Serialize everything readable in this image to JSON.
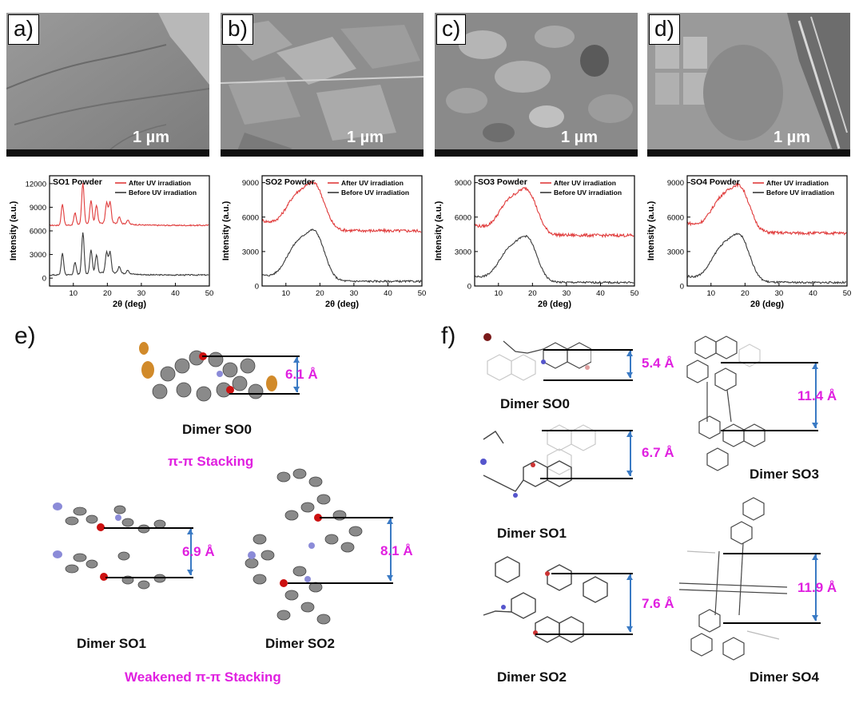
{
  "sem_panels": [
    {
      "label": "a)",
      "scale": "1 µm"
    },
    {
      "label": "b)",
      "scale": "1 µm"
    },
    {
      "label": "c)",
      "scale": "1 µm"
    },
    {
      "label": "d)",
      "scale": "1 µm"
    }
  ],
  "chart_data": [
    {
      "type": "line",
      "title": "SO1 Powder",
      "xlabel": "2θ (deg)",
      "ylabel": "Intensity (a.u.)",
      "xlim": [
        3,
        50
      ],
      "ylim": [
        -1000,
        13000
      ],
      "yticks": [
        "0",
        "3000",
        "6000",
        "9000",
        "12000"
      ],
      "ytick_values": [
        0,
        3000,
        6000,
        9000,
        12000
      ],
      "xticks": [
        "10",
        "20",
        "30",
        "40",
        "50"
      ],
      "xtick_values": [
        10,
        20,
        30,
        40,
        50
      ],
      "kind": "crystalline",
      "upper_base": 6700,
      "lower_base": 400,
      "peaks": [
        [
          6.8,
          2700
        ],
        [
          10.5,
          1500
        ],
        [
          12.8,
          5300
        ],
        [
          15.2,
          3000
        ],
        [
          16.8,
          2300
        ],
        [
          19.8,
          2600
        ],
        [
          20.8,
          2700
        ],
        [
          23.5,
          900
        ],
        [
          26.0,
          500
        ]
      ],
      "series": [
        {
          "name": "After UV irradiation",
          "color": "#e03b3b"
        },
        {
          "name": "Before UV irradiation",
          "color": "#3a3a3a"
        }
      ]
    },
    {
      "type": "line",
      "title": "SO2 Powder",
      "xlabel": "2θ (deg)",
      "ylabel": "Intensity (a.u.)",
      "xlim": [
        3,
        50
      ],
      "ylim": [
        0,
        9600
      ],
      "yticks": [
        "0",
        "3000",
        "6000",
        "9000"
      ],
      "ytick_values": [
        0,
        3000,
        6000,
        9000
      ],
      "xticks": [
        "10",
        "20",
        "30",
        "40",
        "50"
      ],
      "xtick_values": [
        10,
        20,
        30,
        40,
        50
      ],
      "kind": "amorphous",
      "upper_base": 4800,
      "upper_peak": 8400,
      "lower_base": 400,
      "lower_peak": 4300,
      "series": [
        {
          "name": "After UV irradiation",
          "color": "#e03b3b"
        },
        {
          "name": "Before UV irradiation",
          "color": "#3a3a3a"
        }
      ]
    },
    {
      "type": "line",
      "title": "SO3 Powder",
      "xlabel": "2θ (deg)",
      "ylabel": "Intensity (a.u.)",
      "xlim": [
        3,
        50
      ],
      "ylim": [
        0,
        9600
      ],
      "yticks": [
        "0",
        "3000",
        "6000",
        "9000"
      ],
      "ytick_values": [
        0,
        3000,
        6000,
        9000
      ],
      "xticks": [
        "10",
        "20",
        "30",
        "40",
        "50"
      ],
      "xtick_values": [
        10,
        20,
        30,
        40,
        50
      ],
      "kind": "amorphous",
      "upper_base": 4400,
      "upper_peak": 7900,
      "lower_base": 300,
      "lower_peak": 3800,
      "series": [
        {
          "name": "After UV irradiation",
          "color": "#e03b3b"
        },
        {
          "name": "Before UV irradiation",
          "color": "#3a3a3a"
        }
      ]
    },
    {
      "type": "line",
      "title": "SO4 Powder",
      "xlabel": "2θ (deg)",
      "ylabel": "Intensity (a.u.)",
      "xlim": [
        3,
        50
      ],
      "ylim": [
        0,
        9600
      ],
      "yticks": [
        "0",
        "3000",
        "6000",
        "9000"
      ],
      "ytick_values": [
        0,
        3000,
        6000,
        9000
      ],
      "xticks": [
        "10",
        "20",
        "30",
        "40",
        "50"
      ],
      "xtick_values": [
        10,
        20,
        30,
        40,
        50
      ],
      "kind": "amorphous",
      "upper_base": 4600,
      "upper_peak": 8200,
      "lower_base": 300,
      "lower_peak": 4000,
      "series": [
        {
          "name": "After UV irradiation",
          "color": "#e03b3b"
        },
        {
          "name": "Before UV irradiation",
          "color": "#3a3a3a"
        }
      ]
    }
  ],
  "panel_e": {
    "label": "e)",
    "dimer_so0": {
      "caption": "Dimer SO0",
      "distance": "6.1 Å"
    },
    "stacking_label": "π-π Stacking",
    "dimer_so1": {
      "caption": "Dimer SO1",
      "distance": "6.9 Å"
    },
    "dimer_so2": {
      "caption": "Dimer SO2",
      "distance": "8.1 Å"
    },
    "weakened_label": "Weakened π-π Stacking"
  },
  "panel_f": {
    "label": "f)",
    "dimer_so0": {
      "caption": "Dimer SO0",
      "distance": "5.4 Å"
    },
    "dimer_so1": {
      "caption": "Dimer SO1",
      "distance": "6.7 Å"
    },
    "dimer_so2": {
      "caption": "Dimer SO2",
      "distance": "7.6 Å"
    },
    "dimer_so3": {
      "caption": "Dimer SO3",
      "distance": "11.4 Å"
    },
    "dimer_so4": {
      "caption": "Dimer SO4",
      "distance": "11.9 Å"
    }
  }
}
